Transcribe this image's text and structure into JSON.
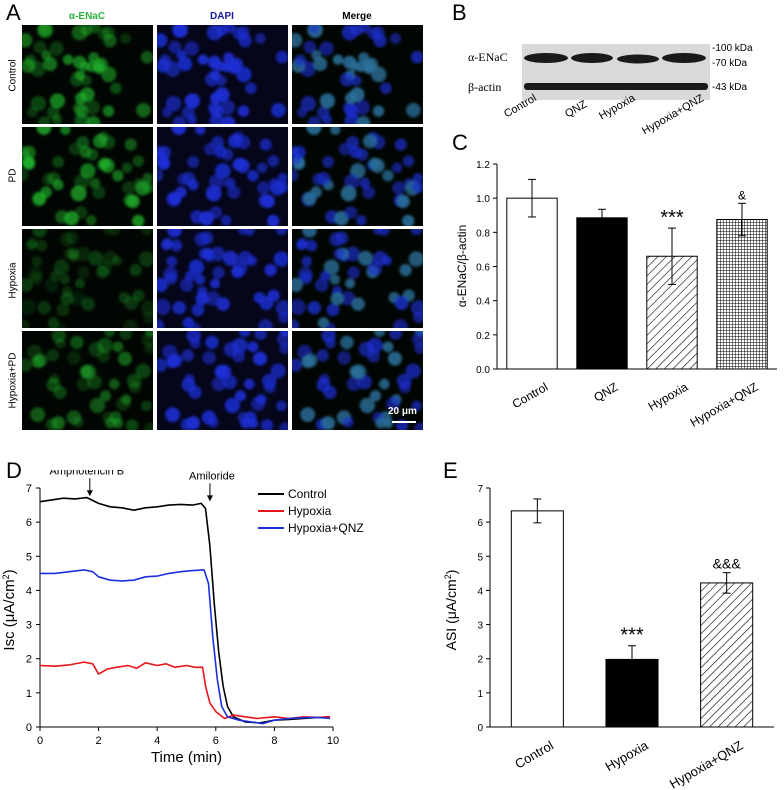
{
  "panels": {
    "a": "A",
    "b": "B",
    "c": "C",
    "d": "D",
    "e": "E"
  },
  "panel_a": {
    "columns": [
      "α-ENaC",
      "DAPI",
      "Merge"
    ],
    "rows": [
      "Control",
      "PD",
      "Hypoxia",
      "Hypoxia+PD"
    ],
    "green_intensity": [
      0.9,
      1.0,
      0.45,
      0.7
    ],
    "scale_bar": "20 μm",
    "colors": {
      "green": "#1fb02a",
      "blue": "#1c2fd6",
      "label_green": "#2db33a",
      "label_blue": "#1a1aa0"
    }
  },
  "panel_b": {
    "bands": [
      "α-ENaC",
      "β-actin"
    ],
    "markers": [
      "-100 kDa",
      "-70 kDa",
      "-43 kDa"
    ],
    "lanes": [
      "Control",
      "QNZ",
      "Hypoxia",
      "Hypoxia+QNZ"
    ]
  },
  "chart_data": [
    {
      "id": "C",
      "type": "bar",
      "categories": [
        "Control",
        "QNZ",
        "Hypoxia",
        "Hypoxia+QNZ"
      ],
      "values": [
        1.0,
        0.885,
        0.66,
        0.875
      ],
      "errors": [
        0.11,
        0.05,
        0.165,
        0.095
      ],
      "fills": [
        "white",
        "black",
        "diagonal-hatch",
        "crosshatch"
      ],
      "annotations": [
        "",
        "",
        "***",
        "&"
      ],
      "ylabel": "α-ENaC/β-actin",
      "ylim": [
        0,
        1.2
      ],
      "yticks": [
        "0.0",
        "0.2",
        "0.4",
        "0.6",
        "0.8",
        "1.0",
        "1.2"
      ]
    },
    {
      "id": "D",
      "type": "line",
      "xlabel": "Time (min)",
      "ylabel_main": "Isc (",
      "ylabel_mu": "μ",
      "ylabel_unit": "A/cm",
      "ylabel_sup": "2",
      "ylabel_end": ")",
      "xlim": [
        0,
        10
      ],
      "ylim": [
        0,
        7
      ],
      "xticks": [
        "0",
        "2",
        "4",
        "6",
        "8",
        "10"
      ],
      "yticks": [
        "0",
        "1",
        "2",
        "3",
        "4",
        "5",
        "6",
        "7"
      ],
      "annotations": [
        {
          "text": "Amphotericin B",
          "x": 1.7,
          "y": 6.7
        },
        {
          "text": "Amiloride",
          "x": 5.8,
          "y": 6.55
        }
      ],
      "series": [
        {
          "name": "Control",
          "color": "#000000",
          "points": [
            [
              0,
              6.6
            ],
            [
              0.4,
              6.65
            ],
            [
              0.8,
              6.7
            ],
            [
              1.2,
              6.68
            ],
            [
              1.6,
              6.72
            ],
            [
              2.0,
              6.55
            ],
            [
              2.4,
              6.45
            ],
            [
              2.8,
              6.42
            ],
            [
              3.2,
              6.35
            ],
            [
              3.6,
              6.42
            ],
            [
              4.0,
              6.45
            ],
            [
              4.4,
              6.5
            ],
            [
              4.8,
              6.52
            ],
            [
              5.2,
              6.5
            ],
            [
              5.5,
              6.55
            ],
            [
              5.65,
              6.4
            ],
            [
              5.8,
              5.3
            ],
            [
              5.95,
              3.6
            ],
            [
              6.1,
              2.2
            ],
            [
              6.25,
              1.2
            ],
            [
              6.4,
              0.6
            ],
            [
              6.6,
              0.3
            ],
            [
              7.0,
              0.15
            ],
            [
              7.5,
              0.12
            ],
            [
              8.0,
              0.2
            ],
            [
              8.5,
              0.22
            ],
            [
              9.0,
              0.25
            ],
            [
              9.5,
              0.28
            ],
            [
              9.9,
              0.3
            ]
          ]
        },
        {
          "name": "Hypoxia",
          "color": "#e8141b",
          "points": [
            [
              0,
              1.8
            ],
            [
              0.5,
              1.78
            ],
            [
              1.0,
              1.82
            ],
            [
              1.5,
              1.9
            ],
            [
              1.8,
              1.85
            ],
            [
              2.0,
              1.55
            ],
            [
              2.3,
              1.7
            ],
            [
              2.6,
              1.75
            ],
            [
              3.0,
              1.8
            ],
            [
              3.3,
              1.72
            ],
            [
              3.6,
              1.88
            ],
            [
              4.0,
              1.8
            ],
            [
              4.3,
              1.85
            ],
            [
              4.6,
              1.75
            ],
            [
              5.0,
              1.8
            ],
            [
              5.3,
              1.75
            ],
            [
              5.55,
              1.75
            ],
            [
              5.65,
              1.2
            ],
            [
              5.8,
              0.7
            ],
            [
              6.0,
              0.45
            ],
            [
              6.3,
              0.25
            ],
            [
              6.6,
              0.35
            ],
            [
              7.0,
              0.3
            ],
            [
              7.4,
              0.25
            ],
            [
              8.0,
              0.3
            ],
            [
              8.5,
              0.25
            ],
            [
              9.0,
              0.3
            ],
            [
              9.5,
              0.28
            ],
            [
              9.9,
              0.3
            ]
          ]
        },
        {
          "name": "Hypoxia+QNZ",
          "color": "#1a2fe0",
          "points": [
            [
              0,
              4.5
            ],
            [
              0.5,
              4.5
            ],
            [
              1.0,
              4.55
            ],
            [
              1.5,
              4.6
            ],
            [
              1.8,
              4.55
            ],
            [
              2.0,
              4.4
            ],
            [
              2.4,
              4.3
            ],
            [
              2.8,
              4.28
            ],
            [
              3.2,
              4.3
            ],
            [
              3.6,
              4.4
            ],
            [
              4.0,
              4.42
            ],
            [
              4.4,
              4.5
            ],
            [
              4.8,
              4.55
            ],
            [
              5.2,
              4.58
            ],
            [
              5.6,
              4.6
            ],
            [
              5.75,
              4.2
            ],
            [
              5.9,
              2.6
            ],
            [
              6.05,
              1.4
            ],
            [
              6.2,
              0.6
            ],
            [
              6.4,
              0.3
            ],
            [
              6.8,
              0.2
            ],
            [
              7.2,
              0.15
            ],
            [
              7.6,
              0.1
            ],
            [
              8.0,
              0.2
            ],
            [
              8.5,
              0.25
            ],
            [
              9.0,
              0.27
            ],
            [
              9.5,
              0.28
            ],
            [
              9.9,
              0.25
            ]
          ]
        }
      ]
    },
    {
      "id": "E",
      "type": "bar",
      "categories": [
        "Control",
        "Hypoxia",
        "Hypoxia+QNZ"
      ],
      "values": [
        6.33,
        1.98,
        4.22
      ],
      "errors": [
        0.35,
        0.4,
        0.3
      ],
      "fills": [
        "white",
        "black",
        "diagonal-hatch"
      ],
      "annotations": [
        "",
        "***",
        "&&&"
      ],
      "ylabel_main": "ASI (",
      "ylabel_mu": "μ",
      "ylabel_unit": "A/cm",
      "ylabel_sup": "2",
      "ylabel_end": ")",
      "ylim": [
        0,
        7
      ],
      "yticks": [
        "0",
        "1",
        "2",
        "3",
        "4",
        "5",
        "6",
        "7"
      ]
    }
  ]
}
